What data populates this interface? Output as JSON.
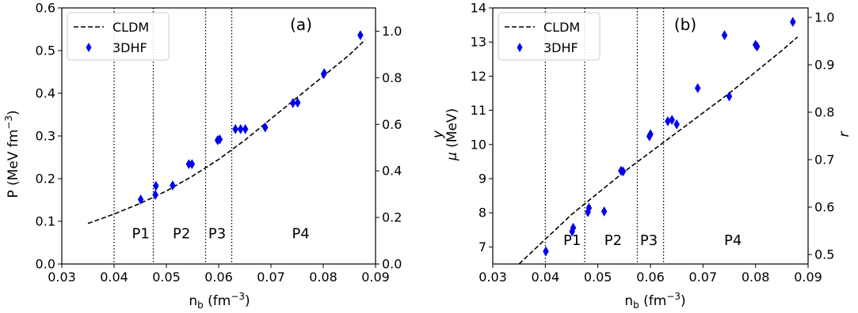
{
  "chart_data": [
    {
      "type": "line",
      "panel_label": "(a)",
      "xlabel": "n_b (fm^-3)",
      "ylabel_left": "P (MeV fm^-3)",
      "ylabel_right": "y",
      "xlim": [
        0.03,
        0.09
      ],
      "ylim_left": [
        0.0,
        0.6
      ],
      "ylim_right": [
        0.0,
        1.1
      ],
      "x_ticks": [
        "0.03",
        "0.04",
        "0.05",
        "0.06",
        "0.07",
        "0.08",
        "0.09"
      ],
      "y_ticks_left": [
        "0.0",
        "0.1",
        "0.2",
        "0.3",
        "0.4",
        "0.5",
        "0.6"
      ],
      "y_ticks_right": [
        "0.0",
        "0.2",
        "0.4",
        "0.6",
        "0.8",
        "1.0"
      ],
      "grid": false,
      "legend_position": "top-left",
      "phase_boundaries": [
        0.04,
        0.0475,
        0.0575,
        0.0625
      ],
      "phase_labels": [
        {
          "text": "P1",
          "x": 0.0451,
          "y": 0.06
        },
        {
          "text": "P2",
          "x": 0.0529,
          "y": 0.06
        },
        {
          "text": "P3",
          "x": 0.0597,
          "y": 0.06
        },
        {
          "text": "P4",
          "x": 0.0757,
          "y": 0.06
        }
      ],
      "series": [
        {
          "name": "CLDM",
          "kind": "line",
          "style": "dashed",
          "color": "#000000",
          "x": [
            0.035,
            0.04,
            0.045,
            0.05,
            0.055,
            0.06,
            0.065,
            0.07,
            0.075,
            0.08,
            0.085,
            0.088
          ],
          "y": [
            0.095,
            0.117,
            0.142,
            0.171,
            0.206,
            0.245,
            0.29,
            0.34,
            0.39,
            0.44,
            0.49,
            0.525
          ]
        },
        {
          "name": "3DHF",
          "kind": "scatter",
          "marker": "diamond",
          "color": "#0000ee",
          "x": [
            0.0451,
            0.0479,
            0.048,
            0.0512,
            0.0543,
            0.0549,
            0.0598,
            0.0602,
            0.0632,
            0.0642,
            0.0651,
            0.0689,
            0.0742,
            0.0751,
            0.0801,
            0.0802,
            0.0871
          ],
          "y": [
            0.151,
            0.162,
            0.183,
            0.184,
            0.234,
            0.234,
            0.29,
            0.292,
            0.316,
            0.316,
            0.316,
            0.32,
            0.377,
            0.378,
            0.445,
            0.447,
            0.536
          ]
        }
      ]
    },
    {
      "type": "line",
      "panel_label": "(b)",
      "xlabel": "n_b (fm^-3)",
      "ylabel_left": "μ (MeV)",
      "ylabel_right": "r",
      "xlim": [
        0.03,
        0.09
      ],
      "ylim_left": [
        6.5,
        14.0
      ],
      "ylim_right": [
        0.48,
        1.02
      ],
      "x_ticks": [
        "0.03",
        "0.04",
        "0.05",
        "0.06",
        "0.07",
        "0.08",
        "0.09"
      ],
      "y_ticks_left": [
        "7",
        "8",
        "9",
        "10",
        "11",
        "12",
        "13",
        "14"
      ],
      "y_ticks_right": [
        "0.5",
        "0.6",
        "0.7",
        "0.8",
        "0.9",
        "1.0"
      ],
      "grid": false,
      "legend_position": "top-left",
      "phase_boundaries": [
        0.04,
        0.0475,
        0.0575,
        0.0625
      ],
      "phase_labels": [
        {
          "text": "P1",
          "x": 0.0451,
          "y": 7.05
        },
        {
          "text": "P2",
          "x": 0.0529,
          "y": 7.05
        },
        {
          "text": "P3",
          "x": 0.0597,
          "y": 7.05
        },
        {
          "text": "P4",
          "x": 0.0757,
          "y": 7.05
        }
      ],
      "series": [
        {
          "name": "CLDM",
          "kind": "line",
          "style": "dashed",
          "color": "#000000",
          "x": [
            0.035,
            0.045,
            0.055,
            0.065,
            0.075,
            0.085,
            0.088
          ],
          "y": [
            6.5,
            7.95,
            9.2,
            10.35,
            11.5,
            12.75,
            13.15
          ]
        },
        {
          "name": "3DHF",
          "kind": "scatter",
          "marker": "diamond",
          "color": "#0000ee",
          "x": [
            0.0401,
            0.0451,
            0.0453,
            0.0481,
            0.0483,
            0.0512,
            0.0544,
            0.0548,
            0.0598,
            0.06,
            0.0633,
            0.0641,
            0.065,
            0.069,
            0.0741,
            0.075,
            0.08,
            0.0803,
            0.0871
          ],
          "y": [
            6.87,
            7.45,
            7.56,
            8.02,
            8.14,
            8.04,
            9.23,
            9.21,
            10.24,
            10.3,
            10.68,
            10.72,
            10.59,
            11.65,
            13.2,
            11.41,
            12.92,
            12.87,
            13.59
          ]
        }
      ]
    }
  ]
}
